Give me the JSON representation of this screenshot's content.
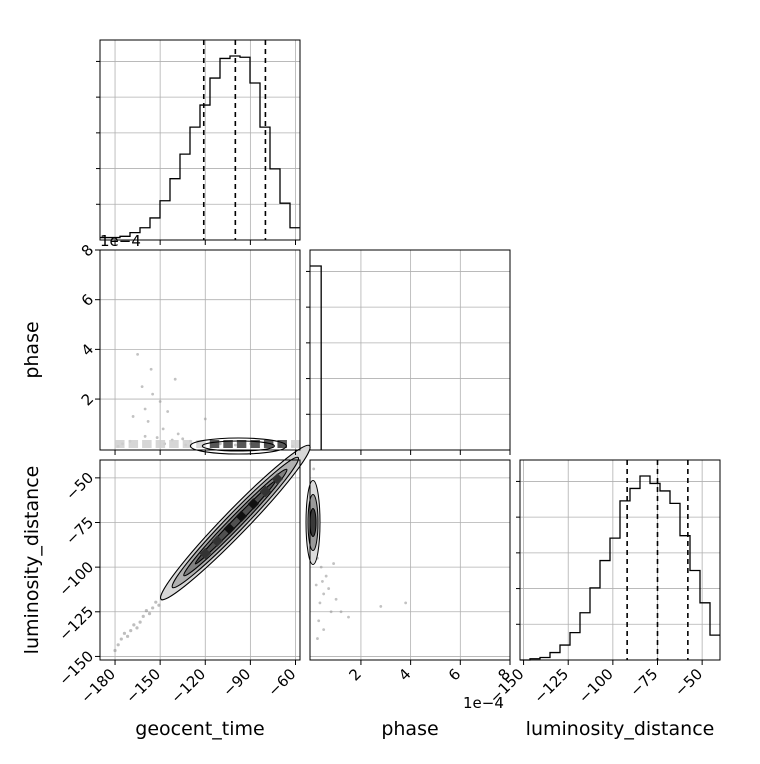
{
  "chart_data": {
    "type": "corner",
    "parameters": [
      "geocent_time",
      "phase",
      "luminosity_distance"
    ],
    "axis_labels": {
      "geocent_time": "geocent_time",
      "phase": "phase",
      "luminosity_distance": "luminosity_distance"
    },
    "phase_scale_label": "1e−4",
    "ticks": {
      "geocent_time": [
        -180,
        -150,
        -120,
        -90,
        -60
      ],
      "phase": [
        2,
        4,
        6,
        8
      ],
      "luminosity_distance": [
        -150,
        -125,
        -100,
        -75,
        -50
      ]
    },
    "tick_labels": {
      "geocent_time": [
        "−180",
        "−150",
        "−120",
        "−90",
        "−60"
      ],
      "phase": [
        "2",
        "4",
        "6",
        "8"
      ],
      "luminosity_distance": [
        "−150",
        "−125",
        "−100",
        "−75",
        "−50"
      ]
    },
    "ranges": {
      "geocent_time": [
        -190,
        -57
      ],
      "phase": [
        -0.05,
        8
      ],
      "luminosity_distance": [
        -152,
        -40
      ]
    },
    "grid": true,
    "marginals": {
      "geocent_time": {
        "bin_edges": [
          -190,
          -183.35,
          -176.7,
          -170.05,
          -163.4,
          -156.75,
          -150.1,
          -143.45,
          -136.8,
          -130.15,
          -123.5,
          -116.85,
          -110.2,
          -103.55,
          -96.9,
          -90.25,
          -83.6,
          -76.95,
          -70.3,
          -63.65,
          -57
        ],
        "counts": [
          2,
          2,
          3,
          6,
          10,
          18,
          32,
          50,
          70,
          92,
          110,
          132,
          148,
          150,
          149,
          128,
          92,
          58,
          30,
          10
        ],
        "quantiles": [
          -121,
          -100,
          -80
        ]
      },
      "phase": {
        "bin_edges": [
          -0.05,
          0.4
        ],
        "counts": [
          150
        ],
        "quantiles": []
      },
      "luminosity_distance": {
        "bin_edges": [
          -152,
          -146.4,
          -140.8,
          -135.2,
          -129.6,
          -124,
          -118.4,
          -112.8,
          -107.2,
          -101.6,
          -96,
          -90.4,
          -84.8,
          -79.2,
          -73.6,
          -68,
          -62.4,
          -56.8,
          -51.2,
          -45.6,
          -40
        ],
        "counts": [
          0,
          1,
          2,
          6,
          12,
          22,
          38,
          58,
          80,
          98,
          128,
          138,
          148,
          142,
          136,
          126,
          100,
          72,
          46,
          20
        ],
        "quantiles": [
          -92,
          -75,
          -58
        ]
      }
    },
    "scatter_samples": {
      "geocent_time_vs_phase": [
        [
          -165,
          3.8
        ],
        [
          -162,
          2.5
        ],
        [
          -160,
          1.6
        ],
        [
          -158,
          1.1
        ],
        [
          -155,
          2.2
        ],
        [
          -150,
          1.9
        ],
        [
          -148,
          0.8
        ],
        [
          -145,
          1.5
        ],
        [
          -140,
          2.8
        ],
        [
          -138,
          0.6
        ],
        [
          -135,
          0.4
        ],
        [
          -130,
          0.3
        ],
        [
          -125,
          0.25
        ],
        [
          -160,
          0.5
        ],
        [
          -170,
          0.3
        ],
        [
          -175,
          0.2
        ],
        [
          -142,
          0.35
        ],
        [
          -152,
          0.45
        ],
        [
          -120,
          1.2
        ],
        [
          -110,
          0.2
        ],
        [
          -100,
          0.15
        ],
        [
          -90,
          0.2
        ],
        [
          -80,
          0.15
        ],
        [
          -70,
          0.1
        ],
        [
          -62,
          0.1
        ],
        [
          -168,
          1.3
        ],
        [
          -156,
          3.2
        ],
        [
          -147,
          0.2
        ],
        [
          -133,
          0.15
        ],
        [
          -178,
          0.1
        ]
      ],
      "phase_vs_luminosity_distance": [
        [
          0.1,
          -45
        ],
        [
          0.05,
          -55
        ],
        [
          0.2,
          -60
        ],
        [
          0.15,
          -70
        ],
        [
          0.3,
          -80
        ],
        [
          0.1,
          -85
        ],
        [
          0.25,
          -95
        ],
        [
          0.4,
          -100
        ],
        [
          0.6,
          -105
        ],
        [
          0.2,
          -110
        ],
        [
          0.5,
          -115
        ],
        [
          0.35,
          -120
        ],
        [
          0.8,
          -125
        ],
        [
          0.3,
          -130
        ],
        [
          1.2,
          -125
        ],
        [
          2.8,
          -122
        ],
        [
          3.8,
          -120
        ],
        [
          0.5,
          -135
        ],
        [
          1.0,
          -118
        ],
        [
          0.7,
          -112
        ],
        [
          0.15,
          -90
        ],
        [
          0.45,
          -108
        ],
        [
          1.5,
          -128
        ],
        [
          0.25,
          -140
        ],
        [
          0.9,
          -98
        ]
      ]
    },
    "contours": {
      "geocent_time_vs_luminosity_distance": {
        "slope": 0.87,
        "centre": [
          -100,
          -75
        ],
        "bins_along": [
          -120,
          -112,
          -104,
          -96,
          -88,
          -80,
          -72
        ],
        "contour_half_lengths": [
          28,
          36,
          44,
          52
        ],
        "contour_half_widths": [
          1.5,
          2.8,
          4.2,
          5.6
        ],
        "scatter_range": [
          -180,
          -57
        ]
      }
    }
  }
}
